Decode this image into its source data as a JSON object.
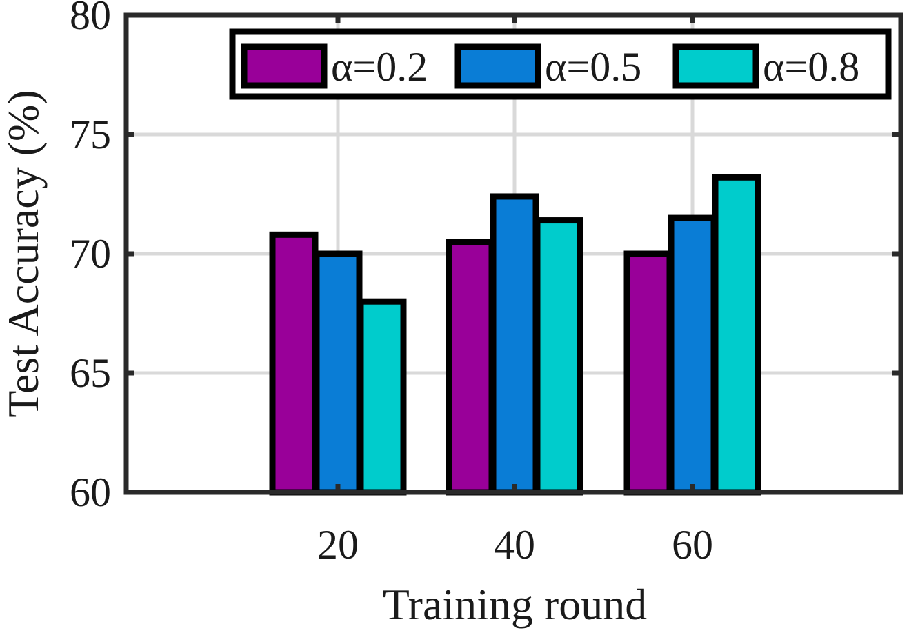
{
  "chart_data": {
    "type": "bar",
    "title": "",
    "xlabel": "Training round",
    "ylabel": "Test Accuracy (%)",
    "categories": [
      "20",
      "40",
      "60"
    ],
    "ylim": [
      60,
      80
    ],
    "yticks": [
      "60",
      "65",
      "70",
      "75",
      "80"
    ],
    "grid": true,
    "legend_position": "top-right",
    "series": [
      {
        "name": "α=0.2",
        "color": "#990099",
        "values": [
          70.8,
          70.5,
          70.0
        ]
      },
      {
        "name": "α=0.5",
        "color": "#0a7dd6",
        "values": [
          70.0,
          72.4,
          71.5
        ]
      },
      {
        "name": "α=0.8",
        "color": "#00cccc",
        "values": [
          68.0,
          71.4,
          73.2
        ]
      }
    ]
  }
}
